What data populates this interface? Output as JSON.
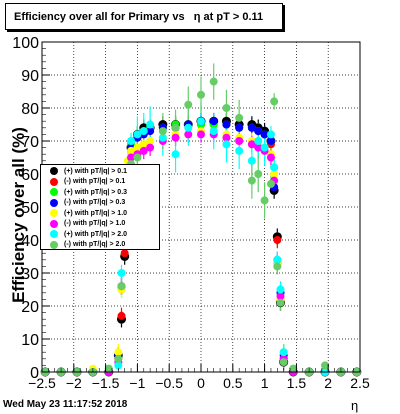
{
  "title": "Efficiency over all for Primary vs   η at pT > 0.11",
  "footer_text": "Wed May 23 11:17:52 2018",
  "chart_data": {
    "type": "scatter",
    "title": "Efficiency over all for Primary vs   η at pT > 0.11",
    "xlabel": "η",
    "ylabel": "Efficiency over all (%)",
    "xlim": [
      -2.5,
      2.5
    ],
    "ylim": [
      0,
      100
    ],
    "x_ticks": [
      "−2.5",
      "−2",
      "−1.5",
      "−1",
      "−0.5",
      "0",
      "0.5",
      "1",
      "1.5",
      "2",
      "2.5"
    ],
    "y_ticks": [
      "0",
      "10",
      "20",
      "30",
      "40",
      "50",
      "60",
      "70",
      "80",
      "90",
      "100"
    ],
    "grid": true,
    "legend_position": "left-middle",
    "series": [
      {
        "name": "(+) with pT/|q| > 0.1",
        "color": "#000000",
        "x": [
          -2.45,
          -2.2,
          -1.95,
          -1.7,
          -1.45,
          -1.3,
          -1.25,
          -1.2,
          -1.15,
          -1.1,
          -1.0,
          -0.9,
          -0.8,
          -0.6,
          -0.4,
          -0.2,
          0.0,
          0.2,
          0.4,
          0.6,
          0.8,
          0.9,
          1.0,
          1.1,
          1.15,
          1.2,
          1.25,
          1.3,
          1.45,
          1.7,
          1.95,
          2.2,
          2.45
        ],
        "y": [
          0,
          0,
          0,
          0,
          0,
          5,
          16,
          35,
          50,
          68,
          72,
          74,
          74,
          75,
          75,
          75,
          76,
          76,
          76,
          75,
          75,
          74,
          73,
          70,
          55,
          41,
          21,
          3,
          0,
          0,
          0,
          0,
          0
        ]
      },
      {
        "name": "(-) with pT/|q| > 0.1",
        "color": "#ff0000",
        "x": [
          -2.45,
          -2.2,
          -1.95,
          -1.7,
          -1.45,
          -1.3,
          -1.25,
          -1.2,
          -1.15,
          -1.1,
          -1.0,
          -0.9,
          -0.8,
          -0.6,
          -0.4,
          -0.2,
          0.0,
          0.2,
          0.4,
          0.6,
          0.8,
          0.9,
          1.0,
          1.1,
          1.15,
          1.2,
          1.25,
          1.3,
          1.45,
          1.7,
          1.95,
          2.2,
          2.45
        ],
        "y": [
          0,
          0,
          0,
          0,
          0,
          4,
          17,
          36,
          52,
          67,
          71,
          73,
          73,
          74,
          74,
          75,
          75,
          75,
          75,
          74,
          74,
          73,
          72,
          69,
          56,
          40,
          22,
          4,
          0,
          0,
          0,
          0,
          0
        ]
      },
      {
        "name": "(+) with pT/|q| > 0.3",
        "color": "#00ff00",
        "x": [
          -2.45,
          -2.2,
          -1.95,
          -1.7,
          -1.45,
          -1.3,
          -1.25,
          -1.2,
          -1.15,
          -1.1,
          -1.0,
          -0.9,
          -0.8,
          -0.6,
          -0.4,
          -0.2,
          0.0,
          0.2,
          0.4,
          0.6,
          0.8,
          0.9,
          1.0,
          1.1,
          1.15,
          1.2,
          1.25,
          1.3,
          1.45,
          1.7,
          1.95,
          2.2,
          2.45
        ],
        "y": [
          0,
          0,
          0,
          0,
          0,
          5,
          25,
          52,
          62,
          69,
          72,
          73,
          74,
          74,
          75,
          75,
          75,
          75,
          75,
          74,
          74,
          73,
          72,
          70,
          62,
          33,
          24,
          6,
          0,
          0,
          0,
          0,
          0
        ]
      },
      {
        "name": "(-) with pT/|q| > 0.3",
        "color": "#0000ff",
        "x": [
          -2.45,
          -2.2,
          -1.95,
          -1.7,
          -1.45,
          -1.3,
          -1.25,
          -1.2,
          -1.15,
          -1.1,
          -1.0,
          -0.9,
          -0.8,
          -0.6,
          -0.4,
          -0.2,
          0.0,
          0.2,
          0.4,
          0.6,
          0.8,
          0.9,
          1.0,
          1.1,
          1.15,
          1.2,
          1.25,
          1.3,
          1.45,
          1.7,
          1.95,
          2.2,
          2.45
        ],
        "y": [
          0,
          0,
          0,
          0,
          0,
          5,
          26,
          48,
          60,
          68,
          71,
          72,
          73,
          74,
          74,
          75,
          76,
          76,
          75,
          74,
          74,
          73,
          72,
          70,
          56,
          33,
          24,
          5,
          0,
          0,
          0,
          0,
          0
        ]
      },
      {
        "name": "(+) with pT/|q| > 1.0",
        "color": "#ffff00",
        "x": [
          -2.45,
          -2.2,
          -1.95,
          -1.7,
          -1.45,
          -1.3,
          -1.25,
          -1.2,
          -1.15,
          -1.1,
          -1.0,
          -0.9,
          -0.8,
          -0.6,
          -0.4,
          -0.2,
          0.0,
          0.2,
          0.4,
          0.6,
          0.8,
          0.9,
          1.0,
          1.1,
          1.15,
          1.2,
          1.25,
          1.3,
          1.45,
          1.7,
          1.95,
          2.2,
          2.45
        ],
        "y": [
          0,
          0,
          0,
          1,
          1,
          6,
          25,
          52,
          64,
          67,
          68,
          69,
          70,
          71,
          72,
          72,
          73,
          73,
          72,
          71,
          70,
          69,
          68,
          66,
          60,
          33,
          22,
          6,
          1,
          0,
          0,
          0,
          0
        ]
      },
      {
        "name": "(-) with pT/|q| > 1.0",
        "color": "#ff00ff",
        "x": [
          -2.45,
          -2.2,
          -1.95,
          -1.7,
          -1.45,
          -1.3,
          -1.25,
          -1.2,
          -1.15,
          -1.1,
          -1.0,
          -0.9,
          -0.8,
          -0.6,
          -0.4,
          -0.2,
          0.0,
          0.2,
          0.4,
          0.6,
          0.8,
          0.9,
          1.0,
          1.1,
          1.15,
          1.2,
          1.25,
          1.3,
          1.45,
          1.7,
          1.95,
          2.2,
          2.45
        ],
        "y": [
          0,
          0,
          0,
          0,
          0,
          3,
          26,
          49,
          61,
          65,
          66,
          67,
          68,
          70,
          71,
          72,
          72,
          72,
          71,
          70,
          69,
          68,
          67,
          65,
          58,
          34,
          23,
          4,
          0,
          0,
          0,
          0,
          0
        ]
      },
      {
        "name": "(+) with pT/|q| > 2.0",
        "color": "#00ffff",
        "x": [
          -2.45,
          -2.2,
          -1.95,
          -1.7,
          -1.45,
          -1.3,
          -1.25,
          -1.2,
          -1.15,
          -1.1,
          -1.0,
          -0.9,
          -0.8,
          -0.6,
          -0.4,
          -0.2,
          0.0,
          0.2,
          0.4,
          0.6,
          0.8,
          0.9,
          1.0,
          1.1,
          1.15,
          1.2,
          1.25,
          1.3,
          1.45,
          1.7,
          1.95,
          2.2,
          2.45
        ],
        "y": [
          0,
          0,
          0,
          0,
          1,
          2,
          30,
          49,
          61,
          70,
          72,
          73,
          75,
          71,
          66,
          74,
          76,
          73,
          69,
          67,
          64,
          70,
          68,
          72,
          62,
          34,
          25,
          6,
          1,
          0,
          0,
          0,
          0
        ]
      },
      {
        "name": "(-) with pT/|q| > 2.0",
        "color": "#66cc66",
        "x": [
          -2.45,
          -2.2,
          -1.95,
          -1.7,
          -1.45,
          -1.3,
          -1.25,
          -1.2,
          -1.15,
          -1.1,
          -1.0,
          -0.9,
          -0.8,
          -0.6,
          -0.4,
          -0.2,
          0.0,
          0.2,
          0.4,
          0.6,
          0.8,
          0.9,
          1.0,
          1.1,
          1.15,
          1.2,
          1.25,
          1.3,
          1.45,
          1.7,
          1.95,
          2.2,
          2.45
        ],
        "y": [
          0,
          0,
          0,
          0,
          1,
          4,
          26,
          51,
          60,
          63,
          65,
          57,
          56,
          73,
          74,
          81,
          84,
          88,
          80,
          77,
          58,
          60,
          52,
          57,
          82,
          32,
          21,
          3,
          1,
          0,
          2,
          0,
          0
        ]
      }
    ]
  }
}
